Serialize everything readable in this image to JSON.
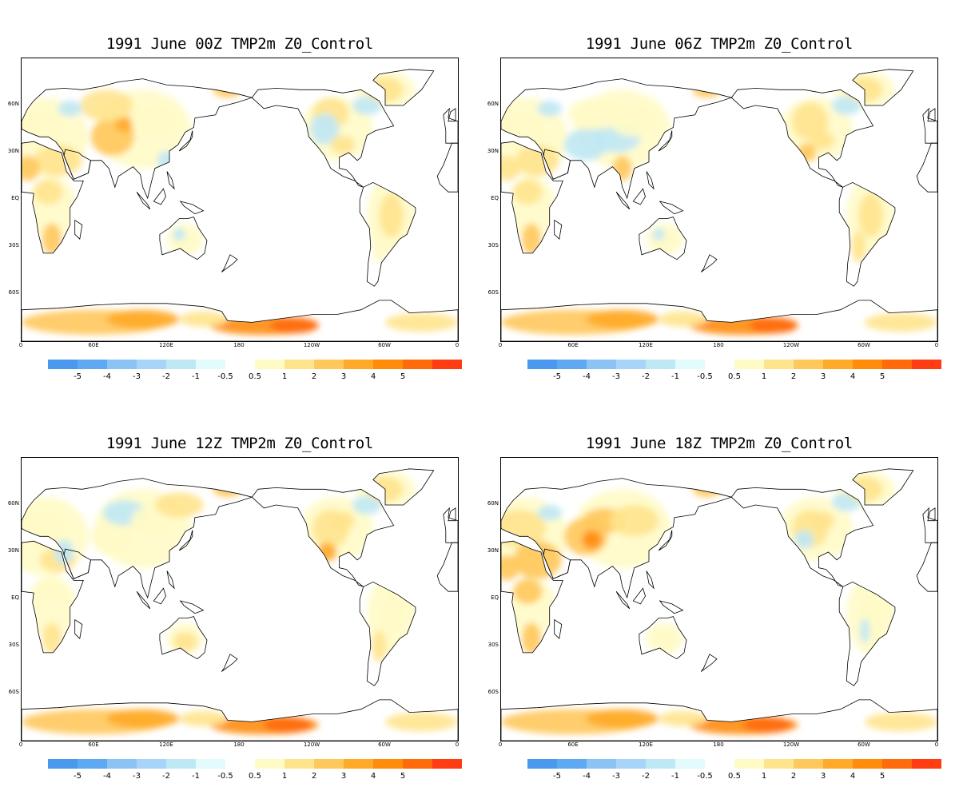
{
  "panels": [
    {
      "title": "1991 June  00Z TMP2m Z0_Control",
      "variant": 0
    },
    {
      "title": "1991  June 06Z TMP2m Z0_Control",
      "variant": 1
    },
    {
      "title": "1991  June 12Z TMP2m Z0_Control",
      "variant": 2
    },
    {
      "title": "1991  June 18Z TMP2m Z0_Control",
      "variant": 3
    }
  ],
  "lat_labels": [
    "60N",
    "30N",
    "EQ",
    "30S",
    "60S"
  ],
  "lon_labels": [
    "0",
    "60E",
    "120E",
    "180",
    "120W",
    "60W",
    "0"
  ],
  "colorbar": {
    "negative_labels": [
      "-5",
      "-4",
      "-3",
      "-2",
      "-1",
      "-0.5"
    ],
    "positive_labels": [
      "0.5",
      "1",
      "2",
      "3",
      "4",
      "5"
    ],
    "negative_colors": [
      "#4a99ee",
      "#5fa8f2",
      "#8cc3f5",
      "#a8d5f7",
      "#bfe8f5",
      "#e3fbfc"
    ],
    "positive_colors": [
      "#fffbc6",
      "#ffe48e",
      "#ffc85c",
      "#ffaa28",
      "#ff8c0a",
      "#ff6a0a",
      "#ff3c12"
    ]
  }
}
